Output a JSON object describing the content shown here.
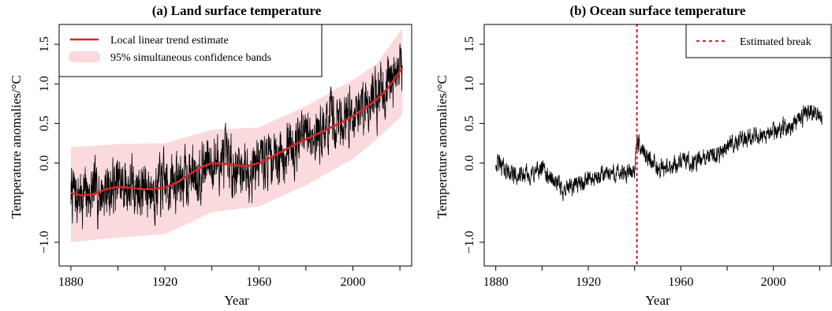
{
  "colors": {
    "series": "#000000",
    "trend": "#d62728",
    "band": "#fadadd",
    "break": "#d62728"
  },
  "chart_data": [
    {
      "type": "line",
      "title": "(a) Land surface temperature",
      "xlabel": "Year",
      "ylabel": "Temperature anomalies/°C",
      "xlim": [
        1875,
        2025
      ],
      "ylim": [
        -1.3,
        1.75
      ],
      "xticks": [
        1880,
        1900,
        1920,
        1940,
        1960,
        1980,
        2000,
        2020
      ],
      "xtick_labels": [
        "1880",
        "",
        "1920",
        "",
        "1960",
        "",
        "2000",
        ""
      ],
      "yticks": [
        -1.0,
        0.0,
        0.5,
        1.0,
        1.5
      ],
      "ytick_labels": [
        "−1.0",
        "0.0",
        "0.5",
        "1.0",
        "1.5"
      ],
      "legend": {
        "position": "top-left",
        "entries": [
          "Local linear trend estimate",
          "95% simultaneous confidence bands"
        ]
      },
      "series": [
        {
          "kind": "monthly",
          "x_range": [
            1880,
            2021
          ],
          "anchors_x": [
            1880,
            1885,
            1890,
            1895,
            1900,
            1905,
            1910,
            1915,
            1920,
            1925,
            1930,
            1935,
            1940,
            1945,
            1950,
            1955,
            1960,
            1965,
            1970,
            1975,
            1980,
            1985,
            1990,
            1995,
            2000,
            2005,
            2010,
            2015,
            2021
          ],
          "anchors_y": [
            -0.38,
            -0.42,
            -0.38,
            -0.33,
            -0.28,
            -0.3,
            -0.33,
            -0.32,
            -0.28,
            -0.23,
            -0.15,
            -0.07,
            0.02,
            0.0,
            -0.05,
            -0.04,
            0.02,
            0.08,
            0.16,
            0.25,
            0.32,
            0.4,
            0.48,
            0.55,
            0.65,
            0.75,
            0.85,
            1.0,
            1.2
          ],
          "noise_amplitude": 0.28
        },
        {
          "name": "Local linear trend estimate",
          "x": [
            1880,
            1885,
            1890,
            1895,
            1900,
            1905,
            1910,
            1915,
            1920,
            1925,
            1930,
            1935,
            1940,
            1945,
            1950,
            1955,
            1960,
            1965,
            1970,
            1975,
            1980,
            1985,
            1990,
            1995,
            2000,
            2005,
            2010,
            2015,
            2021
          ],
          "y": [
            -0.38,
            -0.41,
            -0.39,
            -0.33,
            -0.3,
            -0.31,
            -0.33,
            -0.33,
            -0.31,
            -0.25,
            -0.15,
            -0.06,
            0.0,
            -0.01,
            -0.03,
            -0.04,
            0.0,
            0.07,
            0.15,
            0.23,
            0.3,
            0.37,
            0.44,
            0.51,
            0.59,
            0.69,
            0.8,
            0.95,
            1.2
          ]
        },
        {
          "name": "95% simultaneous confidence bands",
          "x": [
            1880,
            1900,
            1920,
            1940,
            1960,
            1980,
            2000,
            2010,
            2021
          ],
          "upper": [
            0.2,
            0.24,
            0.25,
            0.42,
            0.45,
            0.72,
            1.05,
            1.25,
            1.7
          ],
          "lower": [
            -1.0,
            -0.94,
            -0.9,
            -0.62,
            -0.55,
            -0.28,
            0.05,
            0.3,
            0.6
          ]
        }
      ]
    },
    {
      "type": "line",
      "title": "(b) Ocean surface temperature",
      "xlabel": "Year",
      "ylabel": "Temperature anomalies/°C",
      "xlim": [
        1875,
        2025
      ],
      "ylim": [
        -1.3,
        1.75
      ],
      "xticks": [
        1880,
        1900,
        1920,
        1940,
        1960,
        1980,
        2000,
        2020
      ],
      "xtick_labels": [
        "1880",
        "",
        "1920",
        "",
        "1960",
        "",
        "2000",
        ""
      ],
      "yticks": [
        -1.0,
        0.0,
        0.5,
        1.0,
        1.5
      ],
      "ytick_labels": [
        "−1.0",
        "0.0",
        "0.5",
        "1.0",
        "1.5"
      ],
      "legend": {
        "position": "top-right",
        "entries": [
          "Estimated break"
        ]
      },
      "break_year": 1941,
      "series": [
        {
          "kind": "monthly",
          "x_range": [
            1880,
            2021
          ],
          "anchors_x": [
            1880,
            1885,
            1890,
            1895,
            1900,
            1905,
            1910,
            1915,
            1920,
            1925,
            1930,
            1935,
            1940,
            1941,
            1945,
            1950,
            1955,
            1960,
            1965,
            1970,
            1975,
            1980,
            1985,
            1990,
            1995,
            2000,
            2005,
            2010,
            2015,
            2021
          ],
          "anchors_y": [
            0.02,
            -0.1,
            -0.18,
            -0.15,
            -0.08,
            -0.22,
            -0.35,
            -0.25,
            -0.22,
            -0.18,
            -0.12,
            -0.15,
            -0.08,
            0.25,
            0.12,
            -0.08,
            -0.05,
            0.02,
            0.0,
            0.05,
            0.1,
            0.22,
            0.28,
            0.3,
            0.36,
            0.38,
            0.45,
            0.55,
            0.62,
            0.6
          ],
          "noise_amplitude": 0.09
        }
      ]
    }
  ]
}
